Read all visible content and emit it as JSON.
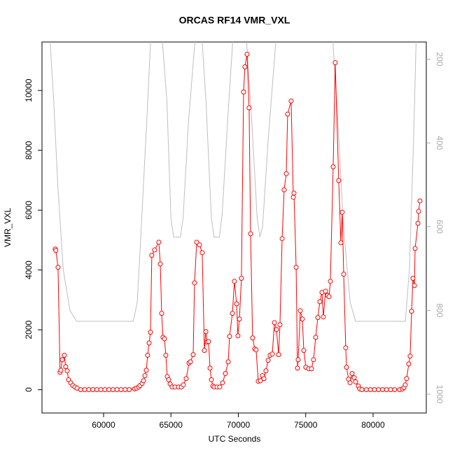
{
  "chart_data": {
    "type": "line",
    "title": "ORCAS RF14 VMR_VXL",
    "x_label": "UTC Seconds",
    "y_label": "VMR_VXL",
    "xlim": [
      55430,
      83950
    ],
    "ylim": [
      -780,
      11620
    ],
    "y2lim": [
      1045,
      159
    ],
    "xticks": [
      60000,
      65000,
      70000,
      75000,
      80000
    ],
    "yticks": [
      0,
      2000,
      4000,
      6000,
      8000,
      10000
    ],
    "y2ticks": [
      200,
      400,
      600,
      800,
      1000
    ],
    "series": [
      {
        "color": "#ff0000",
        "marker": "circle",
        "x": [
          56410,
          56460,
          56620,
          56770,
          56830,
          56930,
          57090,
          57190,
          57300,
          57400,
          57560,
          57710,
          57870,
          58030,
          58300,
          58600,
          58900,
          59200,
          59500,
          59800,
          60100,
          60400,
          60700,
          61000,
          61300,
          61600,
          61900,
          62290,
          62440,
          62600,
          62700,
          62860,
          62960,
          63070,
          63170,
          63270,
          63380,
          63480,
          63580,
          63790,
          64100,
          64210,
          64310,
          64410,
          64520,
          64620,
          64730,
          64830,
          64940,
          65090,
          65300,
          65560,
          65770,
          65920,
          66130,
          66340,
          66440,
          66650,
          66750,
          66910,
          67120,
          67320,
          67480,
          67590,
          67690,
          67790,
          67900,
          68000,
          68110,
          68210,
          68420,
          68620,
          68830,
          69040,
          69250,
          69350,
          69560,
          69710,
          69870,
          69970,
          70080,
          70230,
          70390,
          70490,
          70650,
          70800,
          70910,
          71060,
          71220,
          71320,
          71480,
          71640,
          71790,
          71900,
          72050,
          72210,
          72360,
          72520,
          72680,
          72830,
          72990,
          73090,
          73250,
          73400,
          73560,
          73660,
          73920,
          74080,
          74130,
          74290,
          74390,
          74440,
          74600,
          74750,
          74860,
          75010,
          75220,
          75430,
          75580,
          75740,
          75900,
          76050,
          76210,
          76310,
          76470,
          76620,
          76730,
          76830,
          77040,
          77190,
          77450,
          77610,
          77710,
          77820,
          77970,
          78030,
          78180,
          78290,
          78440,
          78600,
          78700,
          78910,
          79010,
          79170,
          79500,
          79800,
          80100,
          80400,
          80700,
          81000,
          81300,
          81600,
          81970,
          82180,
          82290,
          82390,
          82490,
          82650,
          82750,
          82860,
          82960,
          83070,
          83120,
          83330,
          83380,
          83480
        ],
        "values": [
          4700,
          4650,
          4090,
          580,
          650,
          1000,
          1150,
          770,
          630,
          330,
          230,
          140,
          90,
          50,
          0,
          0,
          0,
          0,
          0,
          0,
          0,
          0,
          0,
          0,
          0,
          0,
          0,
          25,
          50,
          90,
          140,
          210,
          300,
          470,
          650,
          1150,
          1560,
          1920,
          4490,
          4670,
          4930,
          4200,
          2550,
          1750,
          1700,
          1150,
          440,
          330,
          190,
          90,
          90,
          90,
          90,
          160,
          370,
          890,
          930,
          1170,
          3570,
          4930,
          4840,
          4580,
          1310,
          1940,
          1590,
          1610,
          720,
          330,
          120,
          90,
          90,
          90,
          230,
          540,
          930,
          1780,
          2550,
          3620,
          2870,
          1800,
          2360,
          3720,
          9950,
          10790,
          11210,
          9420,
          5210,
          1730,
          1360,
          1330,
          280,
          300,
          470,
          370,
          630,
          980,
          1150,
          1190,
          2240,
          2010,
          1170,
          2170,
          5050,
          6680,
          7220,
          9210,
          9650,
          6430,
          6570,
          4090,
          720,
          1000,
          2640,
          2360,
          1310,
          750,
          700,
          700,
          1000,
          1750,
          2410,
          2940,
          3250,
          2430,
          3290,
          3150,
          3110,
          3620,
          7450,
          10930,
          6990,
          4910,
          5930,
          3860,
          1400,
          750,
          350,
          230,
          540,
          400,
          260,
          120,
          25,
          0,
          0,
          0,
          0,
          0,
          0,
          0,
          0,
          0,
          0,
          25,
          70,
          160,
          370,
          860,
          1120,
          2620,
          3720,
          3480,
          4720,
          5560,
          5960,
          6310
        ]
      },
      {
        "color": "#bebebe",
        "axis": "y2",
        "x": [
          56000,
          56300,
          56600,
          57000,
          57500,
          58000,
          62200,
          62500,
          62800,
          63200,
          63500,
          64300,
          64700,
          65000,
          65200,
          65700,
          65900,
          66300,
          66800,
          67300,
          67600,
          68000,
          68200,
          68600,
          68800,
          69200,
          69600,
          70600,
          71000,
          71400,
          71600,
          71800,
          72200,
          72800,
          77000,
          77400,
          77800,
          78300,
          78700,
          82400,
          82700,
          83000,
          83200
        ],
        "values": [
          140,
          300,
          500,
          700,
          800,
          826,
          826,
          780,
          600,
          350,
          150,
          130,
          300,
          580,
          625,
          625,
          580,
          350,
          150,
          150,
          300,
          580,
          625,
          625,
          570,
          350,
          150,
          150,
          350,
          580,
          625,
          600,
          400,
          150,
          150,
          350,
          600,
          780,
          826,
          826,
          700,
          400,
          150
        ]
      }
    ]
  }
}
